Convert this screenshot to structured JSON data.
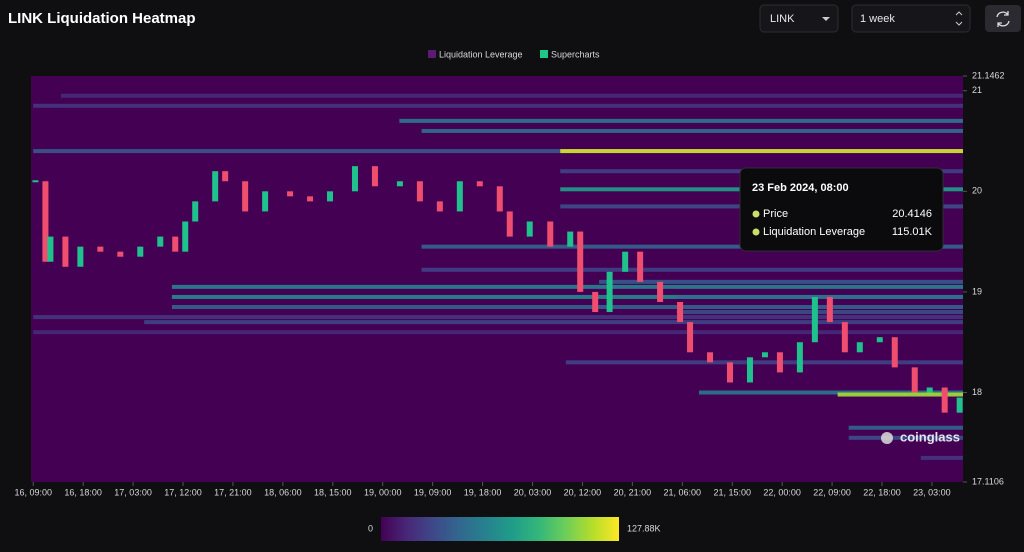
{
  "header": {
    "title": "LINK Liquidation Heatmap",
    "symbol": "LINK",
    "period": "1 week"
  },
  "chart_data": {
    "type": "heatmap",
    "xlim": [
      -0.4,
      167.6
    ],
    "xticks": [
      {
        "value": 0,
        "label": "16, 09:00"
      },
      {
        "value": 9,
        "label": "16, 18:00"
      },
      {
        "value": 18,
        "label": "17, 03:00"
      },
      {
        "value": 27,
        "label": "17, 12:00"
      },
      {
        "value": 36,
        "label": "17, 21:00"
      },
      {
        "value": 45,
        "label": "18, 06:00"
      },
      {
        "value": 54,
        "label": "18, 15:00"
      },
      {
        "value": 63,
        "label": "19, 00:00"
      },
      {
        "value": 72,
        "label": "19, 09:00"
      },
      {
        "value": 81,
        "label": "19, 18:00"
      },
      {
        "value": 90,
        "label": "20, 03:00"
      },
      {
        "value": 99,
        "label": "20, 12:00"
      },
      {
        "value": 108,
        "label": "20, 21:00"
      },
      {
        "value": 117,
        "label": "21, 06:00"
      },
      {
        "value": 126,
        "label": "21, 15:00"
      },
      {
        "value": 135,
        "label": "22, 00:00"
      },
      {
        "value": 144,
        "label": "22, 09:00"
      },
      {
        "value": 153,
        "label": "22, 18:00"
      },
      {
        "value": 162,
        "label": "23, 03:00"
      }
    ],
    "ylim": [
      17.1106,
      21.1462
    ],
    "yticks": [
      17.1106,
      18,
      19,
      20,
      21,
      21.1462
    ],
    "clim": [
      0,
      127880
    ],
    "color_ticks": [
      0,
      {
        "value": 127880,
        "label": "127.88K"
      }
    ],
    "colorscale": [
      "#440154",
      "#482878",
      "#3e4989",
      "#31688e",
      "#26828e",
      "#1f9e89",
      "#35b779",
      "#6ece58",
      "#b5de2b",
      "#fde725"
    ],
    "series": [
      {
        "name": "Liquidation Leverage",
        "color": "#5c1a72",
        "bands": [
          {
            "price": 20.95,
            "start": 5,
            "value": 15000
          },
          {
            "price": 20.85,
            "start": 0,
            "value": 20000
          },
          {
            "price": 20.7,
            "start": 66,
            "value": 50000
          },
          {
            "price": 20.6,
            "start": 70,
            "value": 45000
          },
          {
            "price": 20.4,
            "start": 0,
            "value": 35000
          },
          {
            "price": 20.4,
            "start": 95,
            "value": 120000
          },
          {
            "price": 20.2,
            "start": 95,
            "value": 25000
          },
          {
            "price": 20.02,
            "start": 95,
            "value": 70000
          },
          {
            "price": 19.85,
            "start": 95,
            "value": 30000
          },
          {
            "price": 19.45,
            "start": 70,
            "value": 40000
          },
          {
            "price": 19.22,
            "start": 70,
            "value": 25000
          },
          {
            "price": 19.1,
            "start": 102,
            "value": 35000
          },
          {
            "price": 19.05,
            "start": 25,
            "value": 55000
          },
          {
            "price": 18.95,
            "start": 25,
            "value": 60000
          },
          {
            "price": 18.95,
            "start": 116,
            "value": 45000
          },
          {
            "price": 18.85,
            "start": 25,
            "value": 40000
          },
          {
            "price": 18.8,
            "start": 116,
            "value": 30000
          },
          {
            "price": 18.75,
            "start": 0,
            "value": 20000
          },
          {
            "price": 18.7,
            "start": 20,
            "value": 25000
          },
          {
            "price": 18.6,
            "start": 0,
            "value": 15000
          },
          {
            "price": 18.3,
            "start": 96,
            "value": 25000
          },
          {
            "price": 18.0,
            "start": 120,
            "value": 50000
          },
          {
            "price": 17.98,
            "start": 145,
            "value": 110000
          },
          {
            "price": 17.65,
            "start": 147,
            "value": 40000
          },
          {
            "price": 17.55,
            "start": 147,
            "value": 30000
          },
          {
            "price": 17.35,
            "start": 160,
            "value": 20000
          }
        ]
      },
      {
        "name": "Supercharts",
        "color": "#1fc886",
        "up_color": "#1fc18c",
        "down_color": "#f04e6e",
        "x": [
          0.4,
          2.2,
          3.1,
          5.8,
          8.5,
          12.1,
          15.7,
          19.3,
          22.9,
          25.6,
          27.4,
          29.2,
          32.8,
          34.6,
          38.2,
          41.8,
          46.3,
          49.9,
          53.5,
          58.0,
          61.6,
          66.1,
          69.7,
          73.3,
          76.9,
          80.5,
          84.1,
          85.9,
          89.5,
          93.2,
          96.8,
          98.6,
          101.3,
          103.9,
          106.7,
          109.4,
          113.0,
          116.6,
          118.4,
          122.0,
          125.6,
          129.2,
          131.9,
          134.6,
          138.2,
          140.9,
          143.6,
          146.3,
          149.0,
          152.6,
          155.3,
          158.9,
          161.6,
          164.3,
          167.0
        ],
        "values": [
          20.1,
          19.3,
          19.55,
          19.25,
          19.45,
          19.4,
          19.35,
          19.45,
          19.55,
          19.4,
          19.7,
          19.9,
          20.2,
          20.1,
          19.8,
          20.0,
          19.95,
          19.9,
          20.0,
          20.25,
          20.05,
          20.1,
          19.9,
          19.8,
          20.1,
          20.05,
          19.8,
          19.55,
          19.7,
          19.45,
          19.6,
          19.0,
          18.8,
          19.2,
          19.4,
          19.1,
          18.9,
          18.7,
          18.4,
          18.3,
          18.1,
          18.35,
          18.4,
          18.2,
          18.5,
          18.95,
          18.7,
          18.4,
          18.5,
          18.55,
          18.25,
          18.0,
          18.05,
          17.8,
          17.95
        ]
      }
    ]
  },
  "tooltip": {
    "date": "23 Feb 2024, 08:00",
    "dot_color": "#c8e06a",
    "rows": [
      {
        "label": "Price",
        "value": 20.4146
      },
      {
        "label": "Liquidation Leverage",
        "value": "115.01K"
      }
    ]
  },
  "watermark": "coinglass"
}
